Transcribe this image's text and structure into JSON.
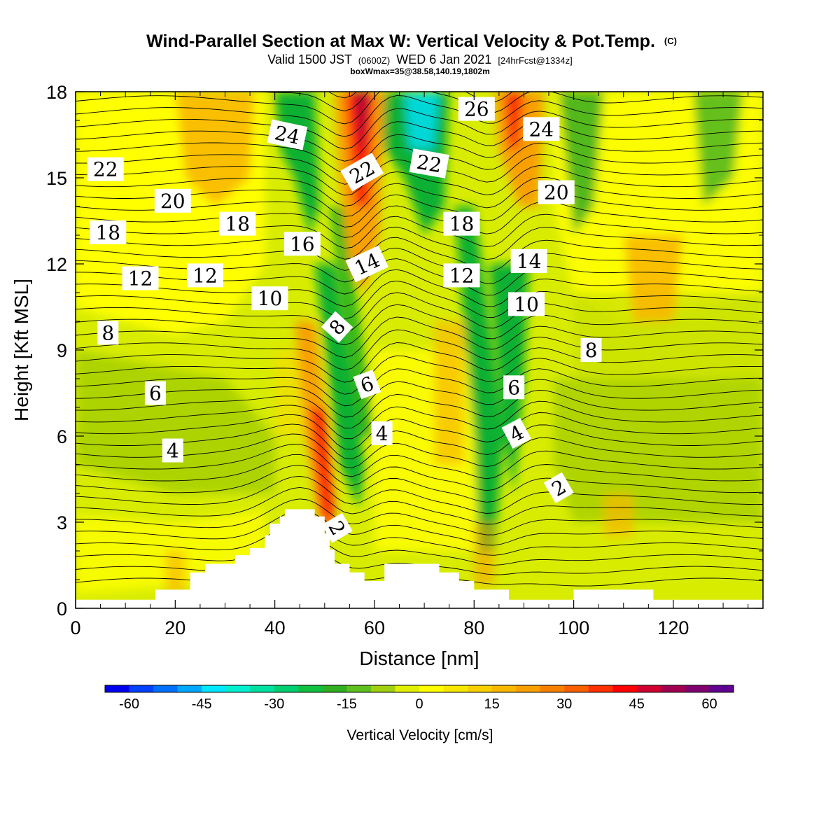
{
  "chart_data": {
    "type": "heatmap",
    "title": "Wind-Parallel Section at Max W: Vertical Velocity & Pot.Temp.",
    "title_mark": "(C)",
    "subtitle_parts": [
      "Valid 1500 JST",
      "(0600Z)",
      "WED 6 Jan 2021",
      "[24hrFcst@1334z]"
    ],
    "subtitle2": "boxWmax=35@38.58,140.19,1802m",
    "xlabel": "Distance [nm]",
    "ylabel": "Height [Kft MSL]",
    "xlim": [
      0,
      138
    ],
    "ylim": [
      0,
      18
    ],
    "xticks": [
      0,
      20,
      40,
      60,
      80,
      100,
      120
    ],
    "yticks": [
      0,
      3,
      6,
      9,
      12,
      15,
      18
    ],
    "grid": false,
    "field": "Vertical Velocity",
    "colorbar": {
      "label": "Vertical Velocity [cm/s]",
      "min": -60,
      "max": 60,
      "step": 5,
      "ticks": [
        -60,
        -45,
        -30,
        -15,
        0,
        15,
        30,
        45,
        60
      ],
      "colors": [
        "#0000f0",
        "#0040ff",
        "#0070ff",
        "#00a8ff",
        "#00e8ff",
        "#00f0d0",
        "#00e0a0",
        "#00d070",
        "#10c040",
        "#30b020",
        "#60c020",
        "#a0d010",
        "#e0f000",
        "#ffff00",
        "#f8e800",
        "#f8d000",
        "#f8b800",
        "#f8a000",
        "#f88000",
        "#f86000",
        "#ff3000",
        "#ff0000",
        "#d00030",
        "#a00050",
        "#800070",
        "#600090"
      ]
    },
    "contours": {
      "field": "Potential Temperature (C)",
      "labels": [
        {
          "text": "22",
          "x": 6,
          "y": 15.3,
          "angle": 0
        },
        {
          "text": "20",
          "x": 19.5,
          "y": 14.2,
          "angle": 0
        },
        {
          "text": "18",
          "x": 6.5,
          "y": 13.1,
          "angle": 0
        },
        {
          "text": "18",
          "x": 32.5,
          "y": 13.4,
          "angle": 0
        },
        {
          "text": "16",
          "x": 45.5,
          "y": 12.7,
          "angle": 0
        },
        {
          "text": "24",
          "x": 42.5,
          "y": 16.5,
          "angle": 12
        },
        {
          "text": "22",
          "x": 57.5,
          "y": 15.2,
          "angle": -30
        },
        {
          "text": "22",
          "x": 71,
          "y": 15.5,
          "angle": 10
        },
        {
          "text": "26",
          "x": 80.5,
          "y": 17.4,
          "angle": 0
        },
        {
          "text": "24",
          "x": 93.5,
          "y": 16.7,
          "angle": 0
        },
        {
          "text": "20",
          "x": 96.5,
          "y": 14.5,
          "angle": 0
        },
        {
          "text": "18",
          "x": 77.5,
          "y": 13.4,
          "angle": 0
        },
        {
          "text": "14",
          "x": 58.5,
          "y": 12.0,
          "angle": -25
        },
        {
          "text": "14",
          "x": 91,
          "y": 12.1,
          "angle": 0
        },
        {
          "text": "12",
          "x": 13,
          "y": 11.5,
          "angle": 0
        },
        {
          "text": "12",
          "x": 26,
          "y": 11.6,
          "angle": 0
        },
        {
          "text": "12",
          "x": 77.5,
          "y": 11.6,
          "angle": 0
        },
        {
          "text": "10",
          "x": 39,
          "y": 10.8,
          "angle": 0
        },
        {
          "text": "10",
          "x": 90.5,
          "y": 10.6,
          "angle": 0
        },
        {
          "text": "8",
          "x": 6.5,
          "y": 9.6,
          "angle": 0
        },
        {
          "text": "8",
          "x": 52.5,
          "y": 9.8,
          "angle": -48
        },
        {
          "text": "8",
          "x": 103.5,
          "y": 9.0,
          "angle": 0
        },
        {
          "text": "6",
          "x": 16,
          "y": 7.5,
          "angle": 0
        },
        {
          "text": "6",
          "x": 58.5,
          "y": 7.8,
          "angle": -20
        },
        {
          "text": "6",
          "x": 88,
          "y": 7.7,
          "angle": 0
        },
        {
          "text": "4",
          "x": 19.5,
          "y": 5.5,
          "angle": 0
        },
        {
          "text": "4",
          "x": 61.5,
          "y": 6.1,
          "angle": 0
        },
        {
          "text": "4",
          "x": 88.5,
          "y": 6.1,
          "angle": -28
        },
        {
          "text": "2",
          "x": 97,
          "y": 4.2,
          "angle": -30
        },
        {
          "text": "2",
          "x": 52.5,
          "y": 2.8,
          "angle": 60
        }
      ]
    },
    "terrain_kft": [
      [
        0,
        0.3
      ],
      [
        16,
        0.3
      ],
      [
        16,
        0.65
      ],
      [
        23,
        0.65
      ],
      [
        23,
        1.25
      ],
      [
        26,
        1.25
      ],
      [
        26,
        1.55
      ],
      [
        32,
        1.55
      ],
      [
        32,
        1.85
      ],
      [
        35,
        1.85
      ],
      [
        35,
        2.1
      ],
      [
        38,
        2.1
      ],
      [
        38,
        2.55
      ],
      [
        39,
        2.55
      ],
      [
        39,
        2.95
      ],
      [
        41,
        2.95
      ],
      [
        41,
        3.2
      ],
      [
        42,
        3.2
      ],
      [
        42,
        3.45
      ],
      [
        48,
        3.45
      ],
      [
        48,
        3.2
      ],
      [
        50,
        3.2
      ],
      [
        50,
        2.6
      ],
      [
        51,
        2.6
      ],
      [
        51,
        2.05
      ],
      [
        52,
        2.05
      ],
      [
        52,
        1.55
      ],
      [
        55,
        1.55
      ],
      [
        55,
        1.25
      ],
      [
        58,
        1.25
      ],
      [
        58,
        0.95
      ],
      [
        62,
        0.95
      ],
      [
        62,
        1.55
      ],
      [
        73,
        1.55
      ],
      [
        73,
        1.25
      ],
      [
        77,
        1.25
      ],
      [
        77,
        0.95
      ],
      [
        80,
        0.95
      ],
      [
        80,
        0.65
      ],
      [
        87,
        0.65
      ],
      [
        87,
        0.3
      ],
      [
        100,
        0.3
      ],
      [
        100,
        0.65
      ],
      [
        116,
        0.65
      ],
      [
        116,
        0.3
      ],
      [
        138,
        0.3
      ]
    ]
  }
}
